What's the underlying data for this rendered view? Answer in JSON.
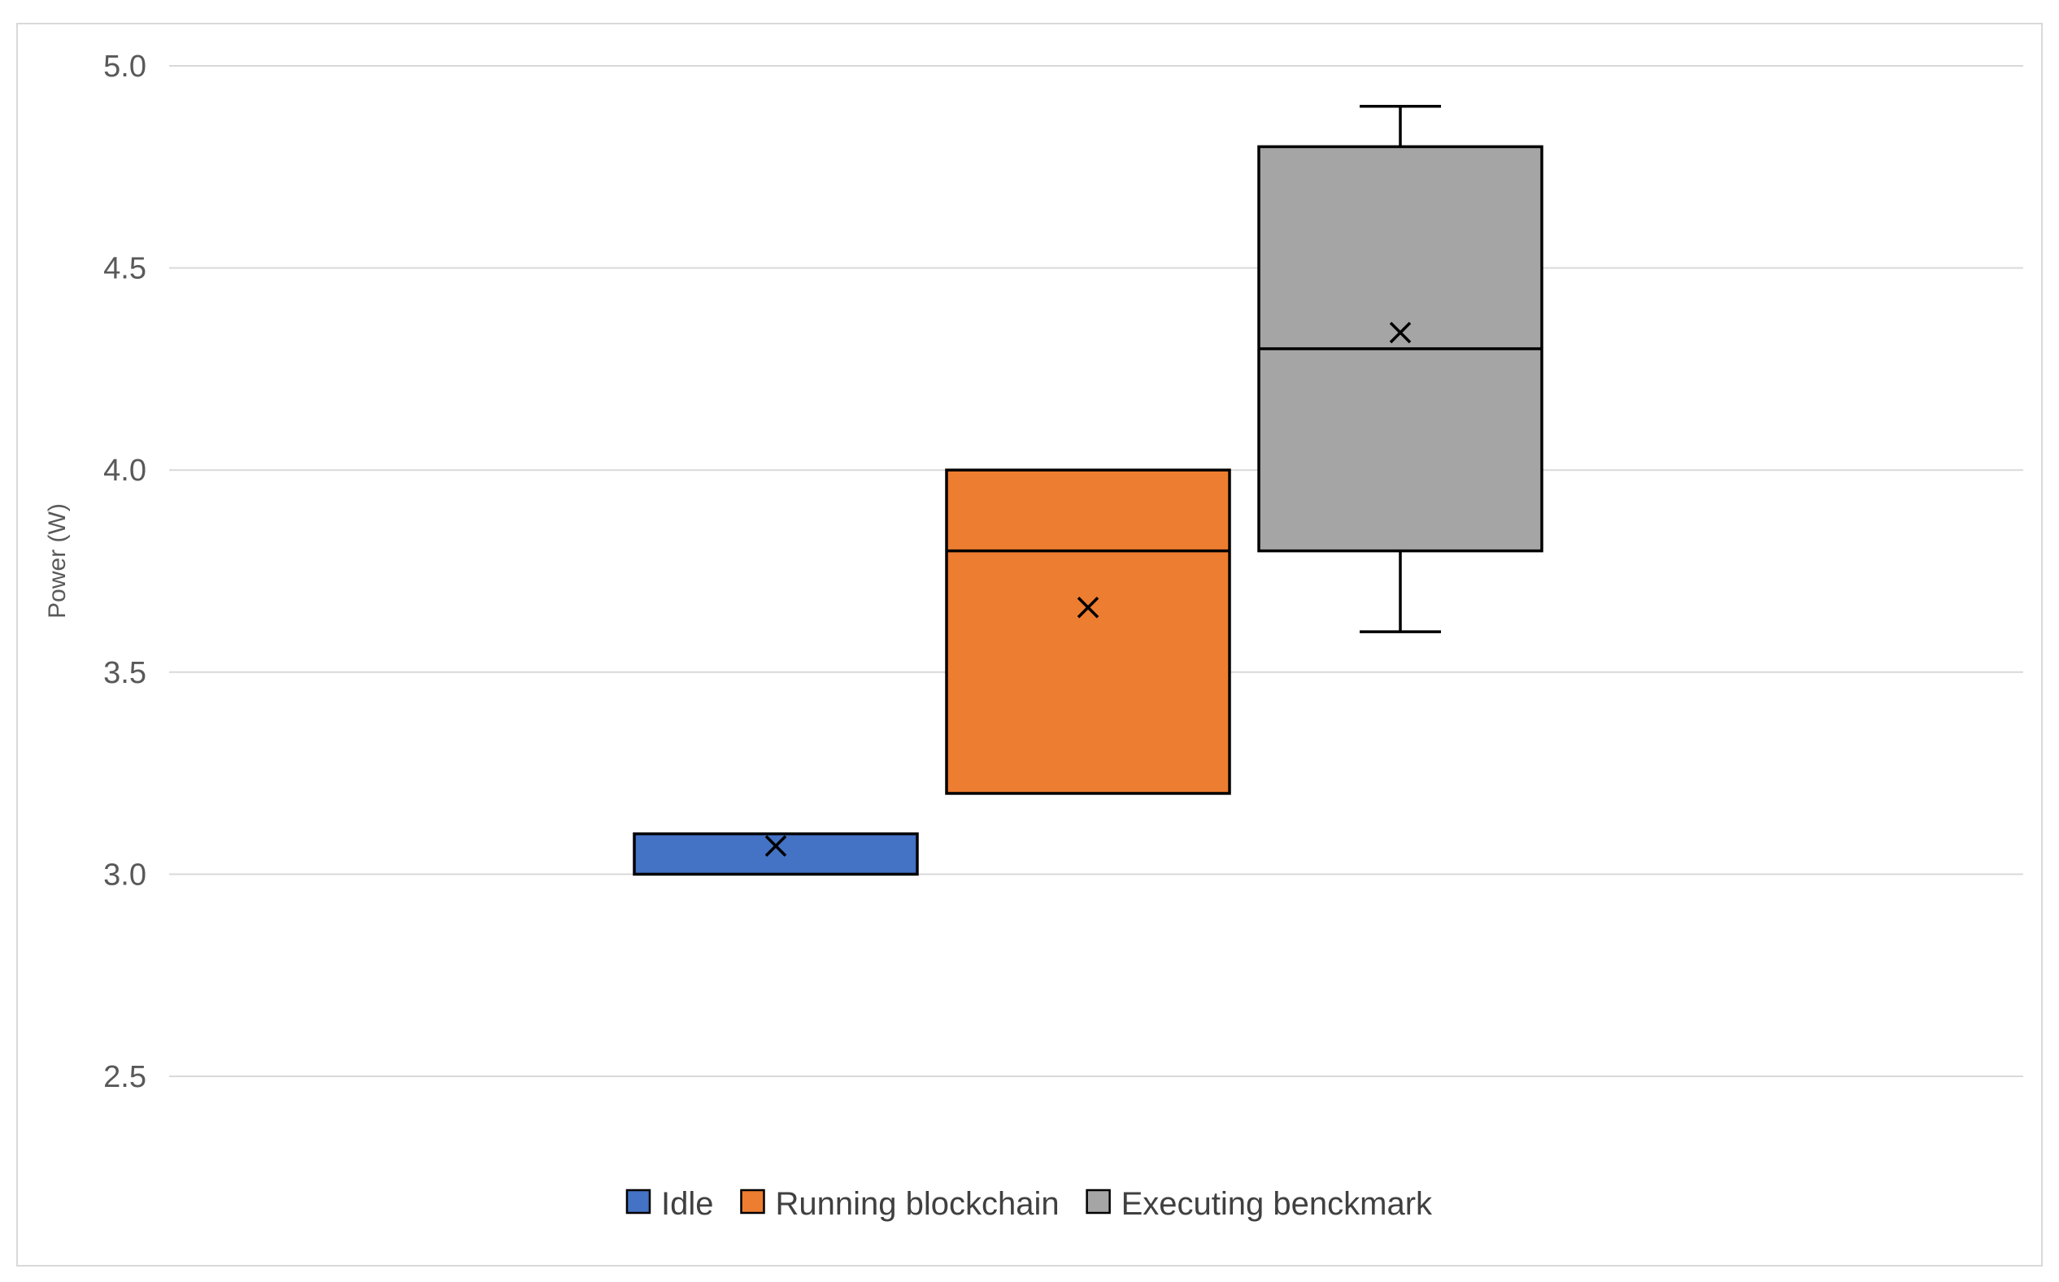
{
  "chart_data": {
    "type": "box",
    "title": "",
    "xlabel": "",
    "ylabel": "Power (W)",
    "ylim": [
      2.5,
      5.0
    ],
    "yticks": [
      2.5,
      3.0,
      3.5,
      4.0,
      4.5,
      5.0
    ],
    "ytick_labels": [
      "2.5",
      "3.0",
      "3.5",
      "4.0",
      "4.5",
      "5.0"
    ],
    "grid": true,
    "legend_position": "bottom",
    "series": [
      {
        "name": "Idle",
        "color": "#4472c4",
        "min": 3.0,
        "q1": 3.0,
        "median": 3.0,
        "q3": 3.1,
        "max": 3.1,
        "mean": 3.07
      },
      {
        "name": "Running blockchain",
        "color": "#ed7d31",
        "min": 3.2,
        "q1": 3.2,
        "median": 3.8,
        "q3": 4.0,
        "max": 4.0,
        "mean": 3.66
      },
      {
        "name": "Executing benckmark",
        "color": "#a5a5a5",
        "min": 3.6,
        "q1": 3.8,
        "median": 4.3,
        "q3": 4.8,
        "max": 4.9,
        "mean": 4.34
      }
    ]
  }
}
